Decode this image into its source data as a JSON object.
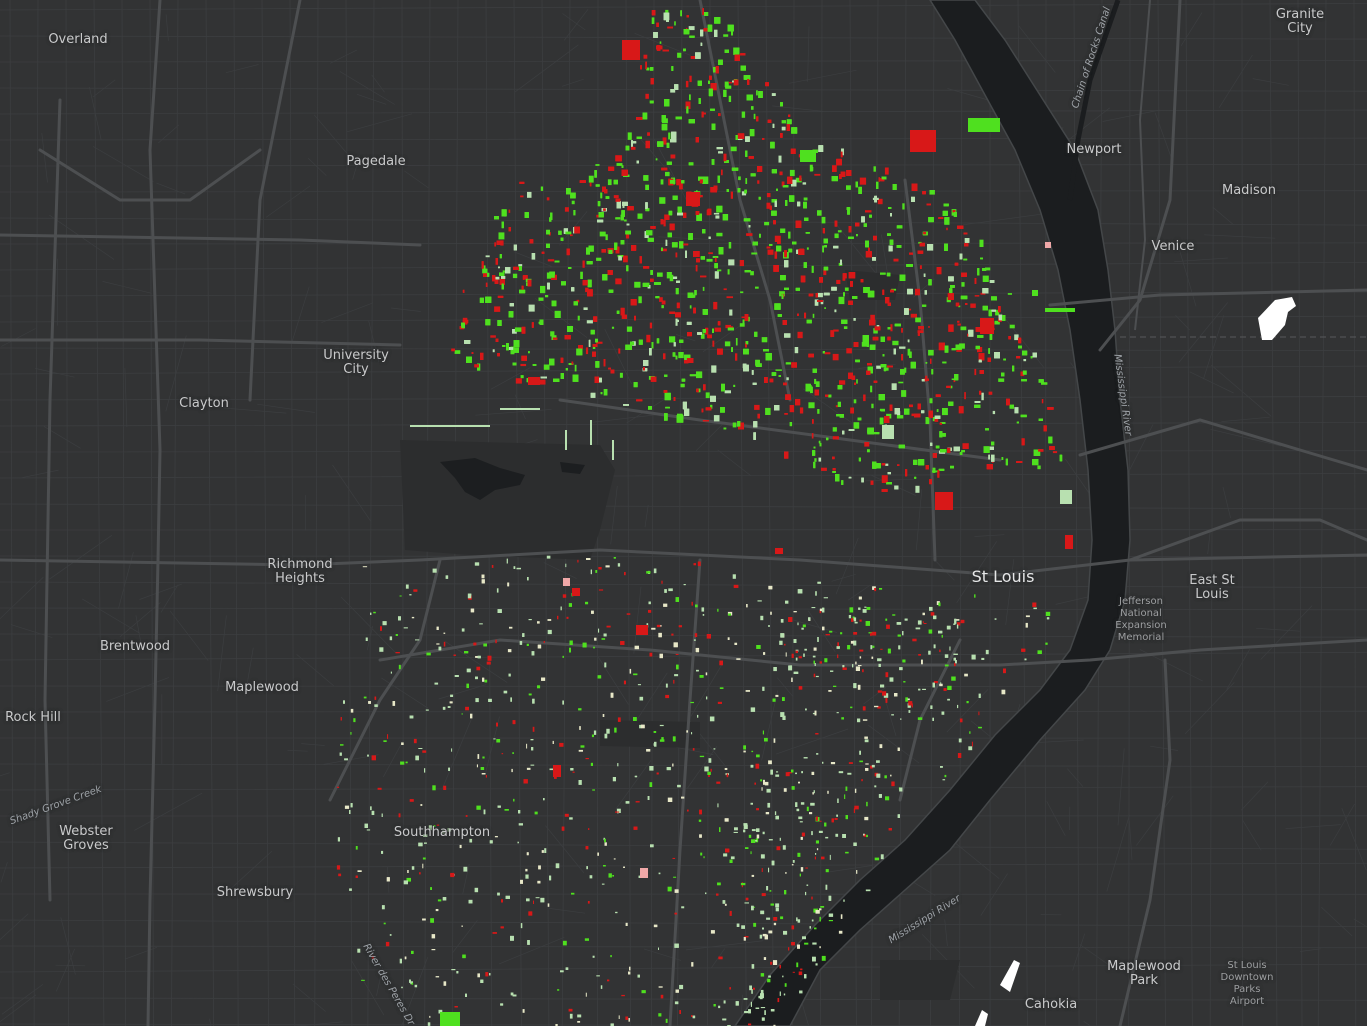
{
  "map": {
    "colors": {
      "land": "#323334",
      "water": "#1b1d1f",
      "river_edge": "#444749",
      "road_major": "#4d4f51",
      "road_minor": "#3c3e40",
      "park": "#2b2c2d",
      "parcel_green": "#4fe01f",
      "parcel_red": "#d81818",
      "parcel_pale": "#b8e0b0",
      "parcel_pink": "#f0a8a8"
    },
    "places": [
      {
        "name": "Overland",
        "kind": "city"
      },
      {
        "name": "Granite\nCity",
        "kind": "city"
      },
      {
        "name": "Pagedale",
        "kind": "city"
      },
      {
        "name": "Newport",
        "kind": "city"
      },
      {
        "name": "Madison",
        "kind": "city"
      },
      {
        "name": "Venice",
        "kind": "city"
      },
      {
        "name": "University\nCity",
        "kind": "city"
      },
      {
        "name": "Clayton",
        "kind": "city"
      },
      {
        "name": "Richmond\nHeights",
        "kind": "city"
      },
      {
        "name": "St Louis",
        "kind": "big"
      },
      {
        "name": "East St\nLouis",
        "kind": "city"
      },
      {
        "name": "Jefferson\nNational\nExpansion\nMemorial",
        "kind": "poi"
      },
      {
        "name": "Brentwood",
        "kind": "city"
      },
      {
        "name": "Maplewood",
        "kind": "city"
      },
      {
        "name": "Rock Hill",
        "kind": "city"
      },
      {
        "name": "Webster\nGroves",
        "kind": "city"
      },
      {
        "name": "Southhampton",
        "kind": "city"
      },
      {
        "name": "Shrewsbury",
        "kind": "city"
      },
      {
        "name": "Maplewood\nPark",
        "kind": "city"
      },
      {
        "name": "Cahokia",
        "kind": "city"
      },
      {
        "name": "St Louis\nDowntown\nParks\nAirport",
        "kind": "poi"
      }
    ],
    "water_labels": [
      {
        "name": "Chain of Rocks Canal"
      },
      {
        "name": "Mississippi River"
      },
      {
        "name": "Mississippi River"
      },
      {
        "name": "Shady Grove Creek"
      },
      {
        "name": "River des Peres Dr"
      }
    ]
  }
}
